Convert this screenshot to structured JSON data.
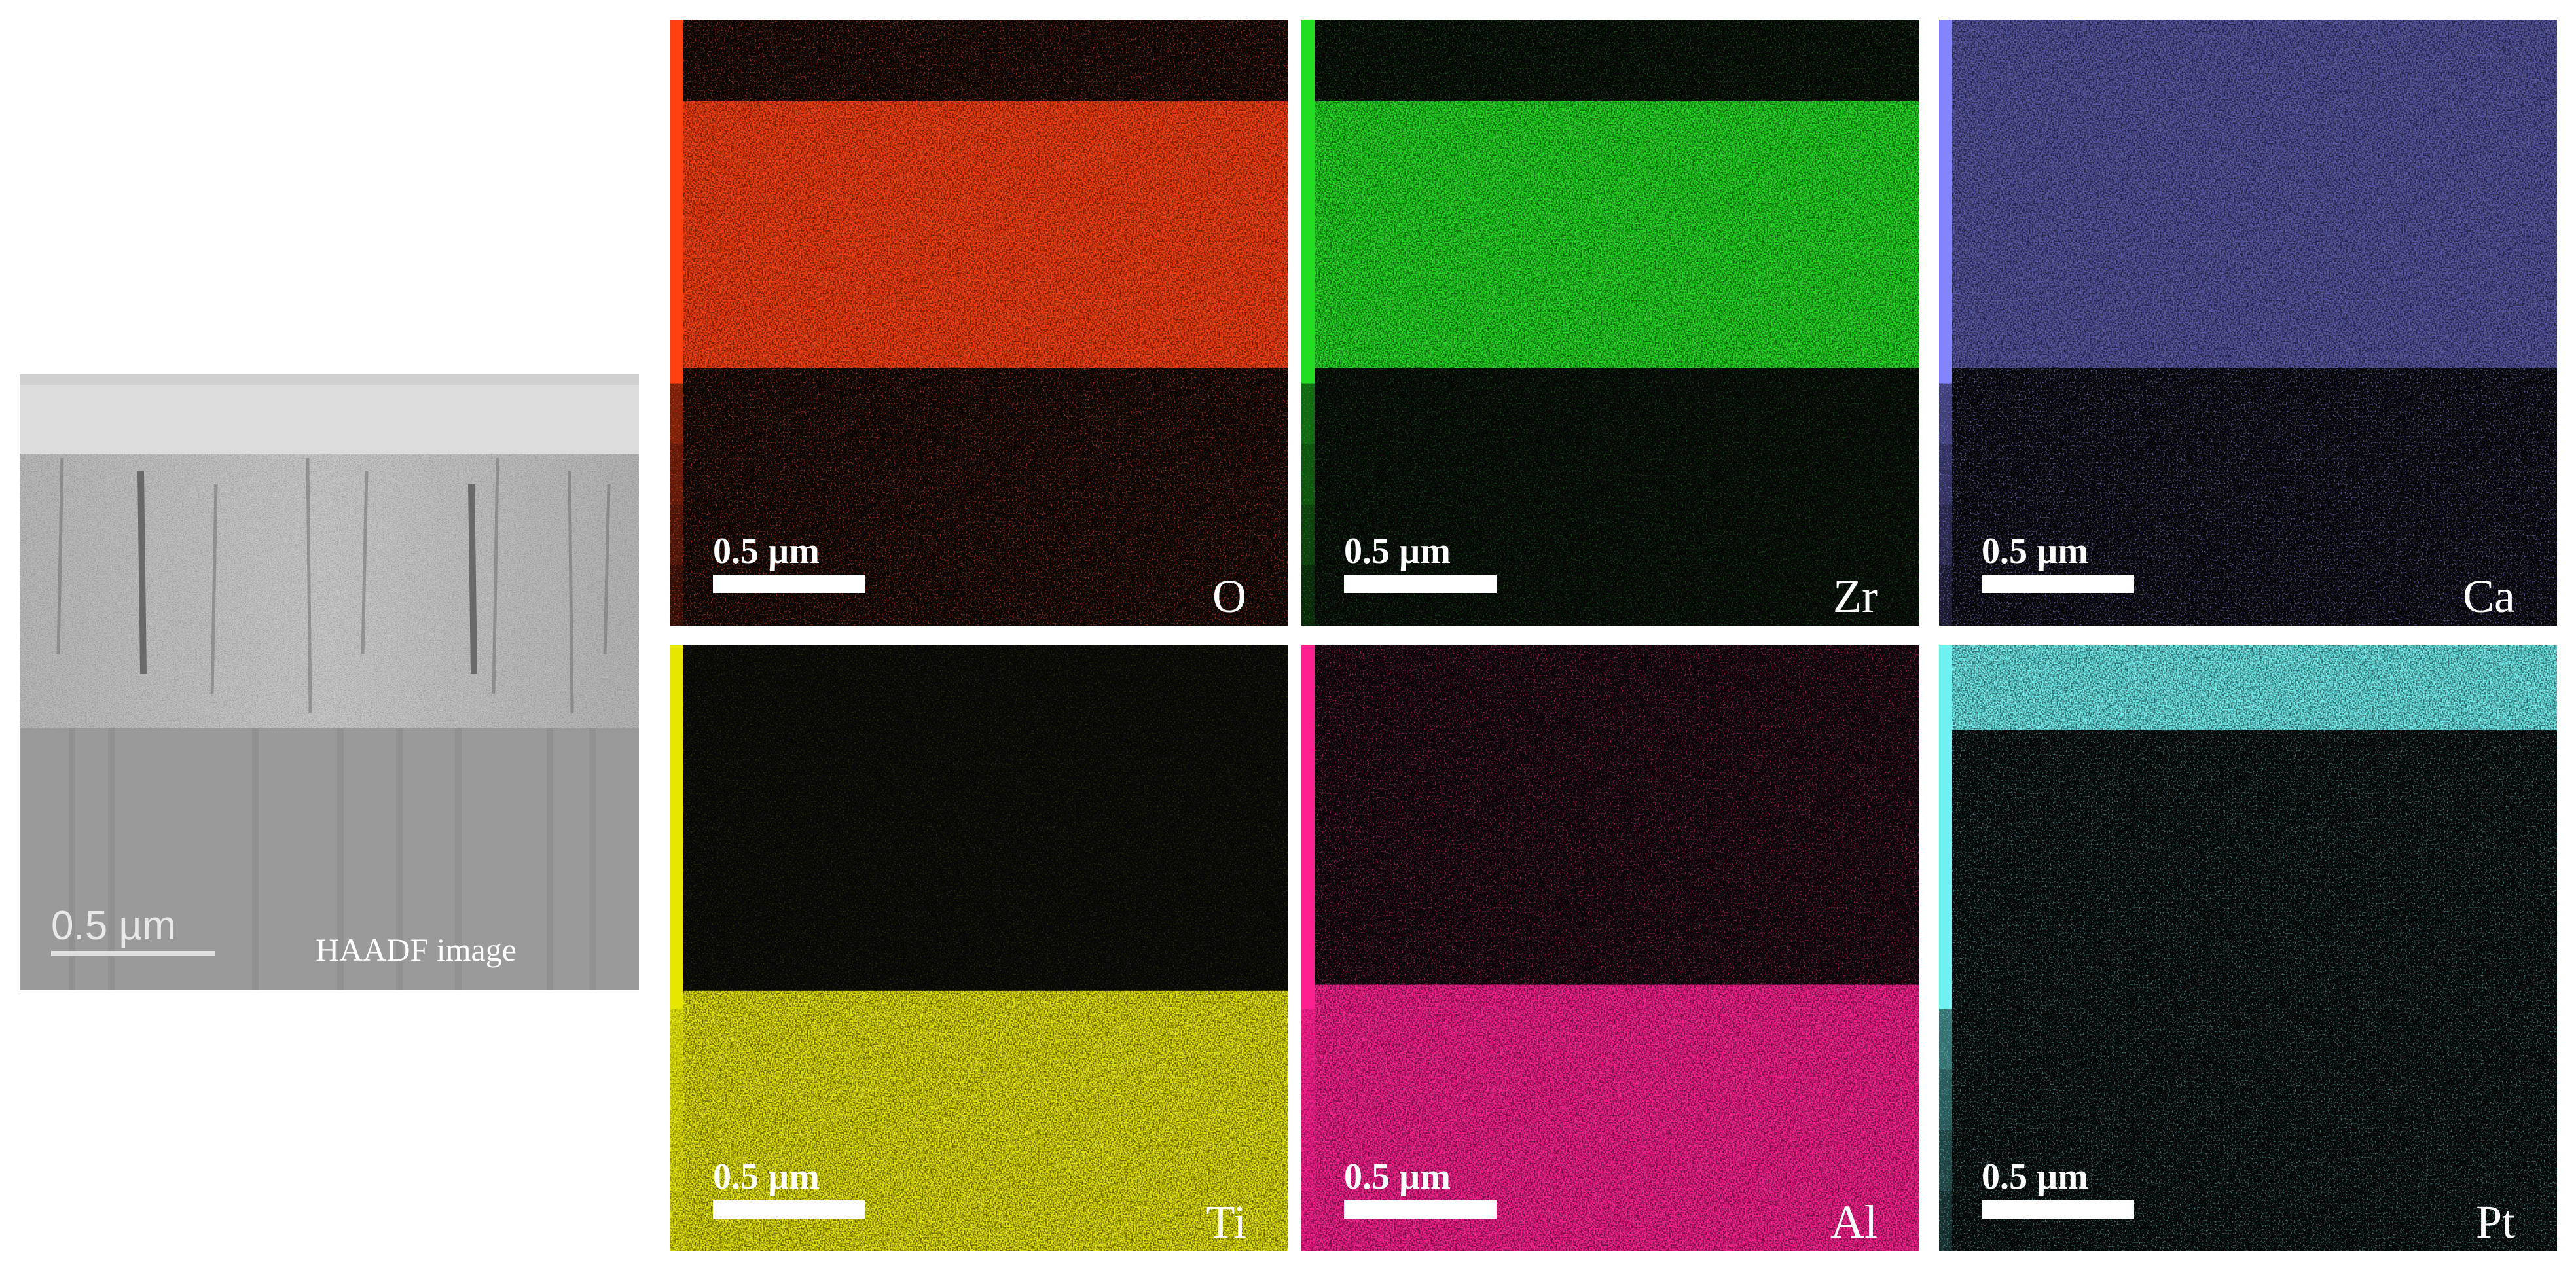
{
  "haadf": {
    "scale_bar": "0.5 µm",
    "label": "HAADF image"
  },
  "maps": [
    {
      "element": "O",
      "scale_bar": "0.5 µm"
    },
    {
      "element": "Zr",
      "scale_bar": "0.5 µm"
    },
    {
      "element": "Ca",
      "scale_bar": "0.5 µm"
    },
    {
      "element": "Ti",
      "scale_bar": "0.5 µm"
    },
    {
      "element": "Al",
      "scale_bar": "0.5 µm"
    },
    {
      "element": "Pt",
      "scale_bar": "0.5 µm"
    }
  ]
}
